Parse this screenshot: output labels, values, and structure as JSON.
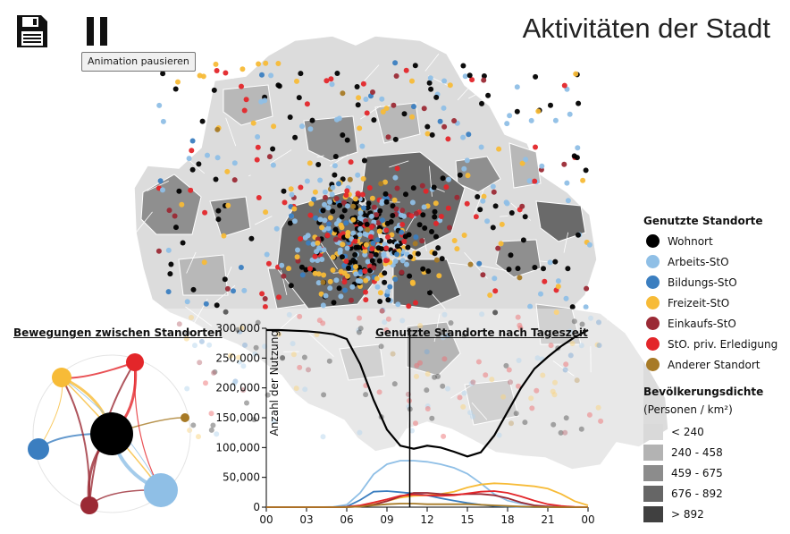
{
  "title": "Aktivitäten der Stadt",
  "toolbar": {
    "save_icon": "floppy-disk-icon",
    "pause_icon": "pause-icon",
    "pause_tooltip": "Animation pausieren"
  },
  "legend": {
    "locations_title": "Genutzte Standorte",
    "locations": [
      {
        "label": "Wohnort",
        "color": "#000000"
      },
      {
        "label": "Arbeits-StO",
        "color": "#8fbfe6"
      },
      {
        "label": "Bildungs-StO",
        "color": "#3b7ec0"
      },
      {
        "label": "Freizeit-StO",
        "color": "#f7bb37"
      },
      {
        "label": "Einkaufs-StO",
        "color": "#9b2a35"
      },
      {
        "label": "StO. priv. Erledigung",
        "color": "#e3262a"
      },
      {
        "label": "Anderer Standort",
        "color": "#a77a26"
      }
    ],
    "density_title": "Bevölkerungsdichte",
    "density_subtitle": "(Personen / km²)",
    "density_classes": [
      {
        "label": "< 240",
        "color": "#d9d9d9"
      },
      {
        "label": "240 - 458",
        "color": "#b3b3b3"
      },
      {
        "label": "459 - 675",
        "color": "#8c8c8c"
      },
      {
        "label": "676 - 892",
        "color": "#666666"
      },
      {
        "label": "> 892",
        "color": "#404040"
      }
    ]
  },
  "movements": {
    "title": "Bewegungen zwischen Standorten"
  },
  "usage": {
    "title": "Genutzte Standorte nach Tageszeit"
  },
  "chart_data": {
    "type": "line",
    "title": "Genutzte Standorte nach Tageszeit",
    "ylabel": "Anzahl der Nutzung",
    "xlabel": "",
    "x": [
      0,
      1,
      2,
      3,
      4,
      5,
      6,
      7,
      8,
      9,
      10,
      11,
      12,
      13,
      14,
      15,
      16,
      17,
      18,
      19,
      20,
      21,
      22,
      23,
      24
    ],
    "x_ticks": [
      "00",
      "03",
      "06",
      "09",
      "12",
      "15",
      "18",
      "21",
      "00"
    ],
    "y_ticks": [
      "0",
      "50,000",
      "100,000",
      "150,000",
      "200,000",
      "250,000",
      "300,000"
    ],
    "ylim": [
      0,
      300000
    ],
    "current_time": 10.7,
    "series": [
      {
        "name": "Wohnort",
        "color": "#000000",
        "values": [
          297000,
          297000,
          296000,
          295000,
          293000,
          290000,
          282000,
          240000,
          180000,
          130000,
          103000,
          98000,
          103000,
          100000,
          93000,
          85000,
          92000,
          120000,
          160000,
          200000,
          232000,
          252000,
          270000,
          285000,
          297000
        ]
      },
      {
        "name": "Arbeits-StO",
        "color": "#8fbfe6",
        "values": [
          0,
          0,
          0,
          0,
          0,
          500,
          4000,
          24000,
          55000,
          72000,
          78000,
          78000,
          76000,
          72000,
          66000,
          56000,
          40000,
          22000,
          11000,
          6000,
          3000,
          1500,
          500,
          0,
          0
        ]
      },
      {
        "name": "Bildungs-StO",
        "color": "#3b7ec0",
        "values": [
          0,
          0,
          0,
          0,
          0,
          0,
          1000,
          12000,
          26000,
          27000,
          25000,
          23000,
          20000,
          15000,
          11000,
          7000,
          4000,
          2000,
          1000,
          500,
          0,
          0,
          0,
          0,
          0
        ]
      },
      {
        "name": "Freizeit-StO",
        "color": "#f7bb37",
        "values": [
          0,
          0,
          0,
          0,
          0,
          0,
          500,
          2000,
          5000,
          10000,
          16000,
          19000,
          20000,
          22000,
          26000,
          33000,
          38000,
          40000,
          39000,
          37000,
          35000,
          31000,
          22000,
          10000,
          3000
        ]
      },
      {
        "name": "Einkaufs-StO",
        "color": "#9b2a35",
        "values": [
          0,
          0,
          0,
          0,
          0,
          0,
          0,
          1000,
          4000,
          10000,
          18000,
          24000,
          24000,
          22000,
          21000,
          22000,
          22000,
          20000,
          15000,
          8000,
          3000,
          1000,
          0,
          0,
          0
        ]
      },
      {
        "name": "StO. priv. Erledigung",
        "color": "#e3262a",
        "values": [
          0,
          0,
          0,
          0,
          0,
          0,
          500,
          3000,
          8000,
          13000,
          19000,
          21000,
          20000,
          19000,
          20000,
          23000,
          26000,
          27000,
          24000,
          18000,
          11000,
          5000,
          2000,
          500,
          0
        ]
      },
      {
        "name": "Anderer Standort",
        "color": "#a77a26",
        "values": [
          0,
          0,
          0,
          0,
          0,
          0,
          0,
          1000,
          3000,
          5000,
          6000,
          6000,
          5000,
          5000,
          5000,
          5000,
          4000,
          3000,
          2000,
          1000,
          500,
          0,
          0,
          0,
          0
        ]
      }
    ]
  }
}
